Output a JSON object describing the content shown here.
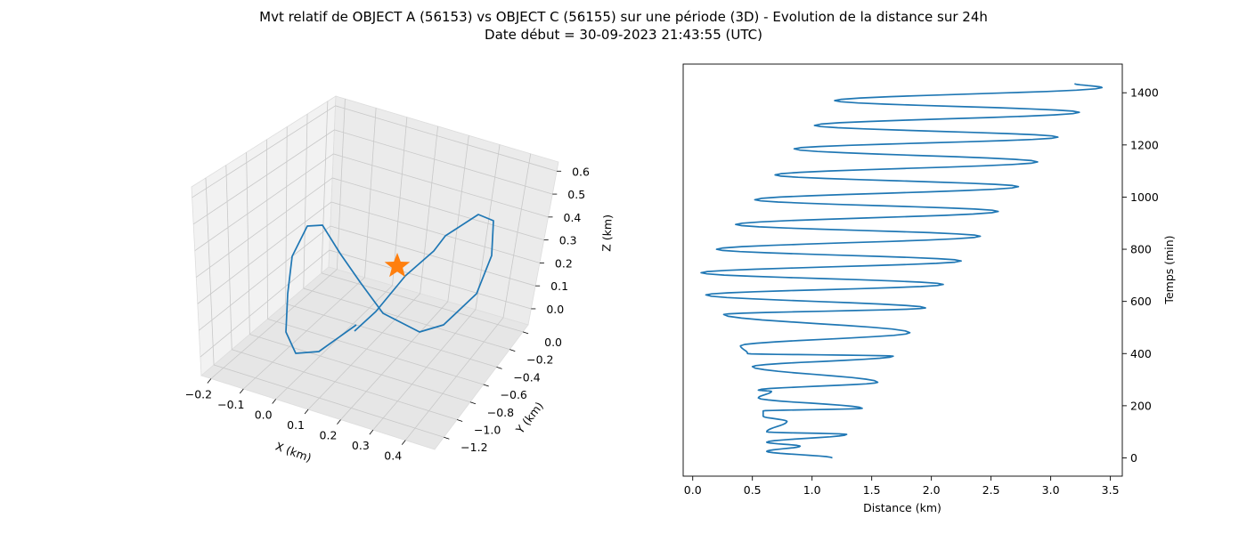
{
  "figure": {
    "title_line1": "Mvt relatif de OBJECT A (56153) vs OBJECT C (56155) sur une période (3D) - Evolution de la distance sur 24h",
    "title_line2": "Date début = 30-09-2023 21:43:55 (UTC)"
  },
  "chart_data": [
    {
      "type": "line",
      "projection": "3d",
      "xlabel": "X (km)",
      "ylabel": "Y (km)",
      "zlabel": "Z (km)",
      "xlim": [
        -0.22,
        0.44
      ],
      "ylim": [
        -1.3,
        0.1
      ],
      "zlim": [
        -0.07,
        0.63
      ],
      "x_ticks": [
        "−0.2",
        "−0.1",
        "0.0",
        "0.1",
        "0.2",
        "0.3",
        "0.4"
      ],
      "y_ticks": [
        "0.0",
        "−0.2",
        "−0.4",
        "−0.6",
        "−0.8",
        "−1.0",
        "−1.2"
      ],
      "z_ticks": [
        "0.6",
        "0.5",
        "0.4",
        "0.3",
        "0.2",
        "0.1",
        "0.0"
      ],
      "series_color": "#1f77b4",
      "marker": {
        "symbol": "star",
        "color": "#ff7f0e",
        "x": 0.0,
        "y": 0.0,
        "z": 0.0
      },
      "grid": true
    },
    {
      "type": "line",
      "xlabel": "Distance (km)",
      "ylabel": "Temps (min)",
      "xlim": [
        -0.08,
        3.6
      ],
      "ylim": [
        -70,
        1510
      ],
      "x_ticks": [
        0.0,
        0.5,
        1.0,
        1.5,
        2.0,
        2.5,
        3.0,
        3.5
      ],
      "y_ticks": [
        0,
        200,
        400,
        600,
        800,
        1000,
        1200,
        1400
      ],
      "y_axis_position": "right",
      "series_color": "#1f77b4",
      "peaks": [
        [
          1.17,
          0
        ],
        [
          0.62,
          25
        ],
        [
          1.29,
          90
        ],
        [
          0.62,
          60
        ],
        [
          0.9,
          45
        ],
        [
          0.62,
          100
        ],
        [
          1.29,
          90
        ],
        [
          0.59,
          160
        ],
        [
          0.79,
          140
        ],
        [
          0.59,
          180
        ],
        [
          1.42,
          190
        ],
        [
          0.55,
          230
        ],
        [
          0.66,
          255
        ],
        [
          0.55,
          260
        ],
        [
          1.55,
          290
        ],
        [
          0.5,
          350
        ],
        [
          0.46,
          400
        ],
        [
          1.68,
          390
        ],
        [
          0.4,
          430
        ],
        [
          1.82,
          480
        ],
        [
          0.26,
          550
        ],
        [
          1.95,
          575
        ],
        [
          0.11,
          625
        ],
        [
          2.1,
          665
        ],
        [
          0.07,
          710
        ],
        [
          2.25,
          755
        ],
        [
          0.2,
          800
        ],
        [
          2.41,
          850
        ],
        [
          0.36,
          895
        ],
        [
          2.56,
          945
        ],
        [
          0.52,
          990
        ],
        [
          2.73,
          1040
        ],
        [
          0.69,
          1085
        ],
        [
          2.89,
          1135
        ],
        [
          0.85,
          1185
        ],
        [
          3.06,
          1230
        ],
        [
          1.02,
          1275
        ],
        [
          3.24,
          1325
        ],
        [
          1.19,
          1370
        ],
        [
          3.43,
          1420
        ],
        [
          3.2,
          1435
        ]
      ]
    }
  ]
}
